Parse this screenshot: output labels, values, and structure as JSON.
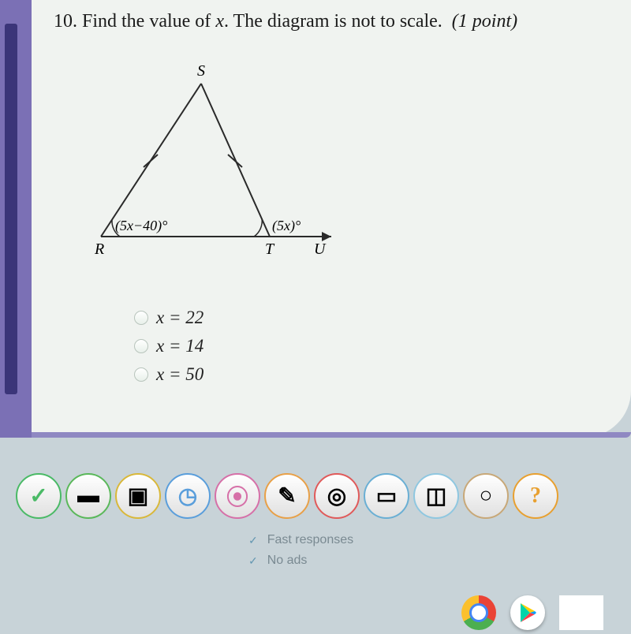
{
  "question": {
    "number": "10.",
    "text_before_x": "Find the value of ",
    "variable": "x",
    "text_after_x": ". The diagram is not to scale.",
    "points": "(1 point)"
  },
  "diagram": {
    "type": "flowchart",
    "label_S": "S",
    "label_R": "R",
    "label_T": "T",
    "label_U": "U",
    "angle_left": "(5x−40)°",
    "angle_right": "(5x)°",
    "stroke_color": "#2a2a2a",
    "stroke_width": 2,
    "label_fontsize": 18,
    "expr_fontsize": 18
  },
  "answers": [
    {
      "label": "x = 22"
    },
    {
      "label": "x = 14"
    },
    {
      "label": "x = 50"
    }
  ],
  "toolbar_icons": [
    {
      "name": "confirm-icon",
      "glyph": "✓",
      "cls": "tool-green"
    },
    {
      "name": "book-icon",
      "glyph": "▬",
      "cls": "tool-book"
    },
    {
      "name": "box-icon",
      "glyph": "▣",
      "cls": "tool-yellow"
    },
    {
      "name": "stopwatch-icon",
      "glyph": "◷",
      "cls": "tool-blue"
    },
    {
      "name": "pin-icon",
      "glyph": "⦿",
      "cls": "tool-pink"
    },
    {
      "name": "pencil-icon",
      "glyph": "✎",
      "cls": "tool-orange"
    },
    {
      "name": "target-icon",
      "glyph": "◎",
      "cls": "tool-red"
    },
    {
      "name": "journal-icon",
      "glyph": "▭",
      "cls": "tool-cyan"
    },
    {
      "name": "tray-icon",
      "glyph": "◫",
      "cls": "tool-lightblue"
    },
    {
      "name": "disc-icon",
      "glyph": "○",
      "cls": "tool-tan"
    },
    {
      "name": "help-icon",
      "glyph": "?",
      "cls": "tool-help"
    }
  ],
  "features": [
    "Fast responses",
    "No ads"
  ],
  "colors": {
    "page_bg": "#c8d3d8",
    "panel_bg": "#f0f3f0",
    "left_bar": "#7b70b5",
    "left_bar_inner": "#3b3579"
  }
}
